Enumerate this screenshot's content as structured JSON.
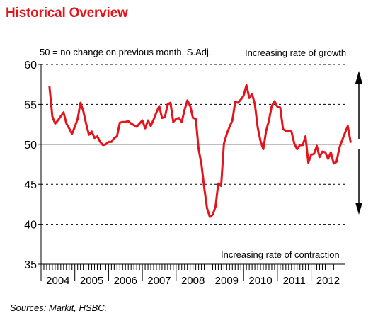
{
  "title": "Historical Overview",
  "subtitle_note": "50 = no change on previous month, S.Adj.",
  "annotation_top": "Increasing rate of growth",
  "annotation_bottom": "Increasing rate of contraction",
  "source": "Sources: Markit, HSBC.",
  "colors": {
    "title": "#e3141c",
    "line": "#e3141c",
    "axis": "#000000",
    "grid": "#000000"
  },
  "chart_data": {
    "type": "line",
    "ylim": [
      35,
      60
    ],
    "yticks": [
      35,
      40,
      45,
      50,
      55,
      60
    ],
    "x_tick_labels": [
      "2004",
      "2005",
      "2006",
      "2007",
      "2008",
      "2009",
      "2010",
      "2011",
      "2012"
    ],
    "x_start": "2004-04",
    "x_end": "2012-09",
    "grid": "dashed horizontal at 40, 45, 55, 60; solid reference line at 50",
    "reference_line": 50,
    "arrows": "double-headed arrow on right side, up = growth, down = contraction",
    "series": [
      {
        "values": [
          57.2,
          53.5,
          52.6,
          53.0,
          53.5,
          54.0,
          52.6,
          52.0,
          51.3,
          52.2,
          53.2,
          55.2,
          54.2,
          52.6,
          51.2,
          51.6,
          50.8,
          51.0,
          50.3,
          49.9,
          50.0,
          50.3,
          50.3,
          50.8,
          51.0,
          52.7,
          52.8,
          52.8,
          52.9,
          52.6,
          52.4,
          52.2,
          52.6,
          53.0,
          52.0,
          53.0,
          52.3,
          53.1,
          54.0,
          54.8,
          53.3,
          53.4,
          55.0,
          55.2,
          52.8,
          53.2,
          53.3,
          52.8,
          54.3,
          55.5,
          54.8,
          53.3,
          53.2,
          49.4,
          47.5,
          44.6,
          42.0,
          40.9,
          41.2,
          42.2,
          45.1,
          44.8,
          50.1,
          51.3,
          52.2,
          53.0,
          55.3,
          55.2,
          55.6,
          56.1,
          57.4,
          55.8,
          56.3,
          55.0,
          52.1,
          50.4,
          49.4,
          51.7,
          53.0,
          54.8,
          55.4,
          54.7,
          54.6,
          51.9,
          51.7,
          51.7,
          51.6,
          50.1,
          49.4,
          49.9,
          49.9,
          51.0,
          47.7,
          48.7,
          48.8,
          49.8,
          48.4,
          49.1,
          49.0,
          48.2,
          49.0,
          47.6,
          47.8,
          49.5,
          50.5,
          51.4,
          52.3,
          50.3
        ]
      }
    ]
  }
}
